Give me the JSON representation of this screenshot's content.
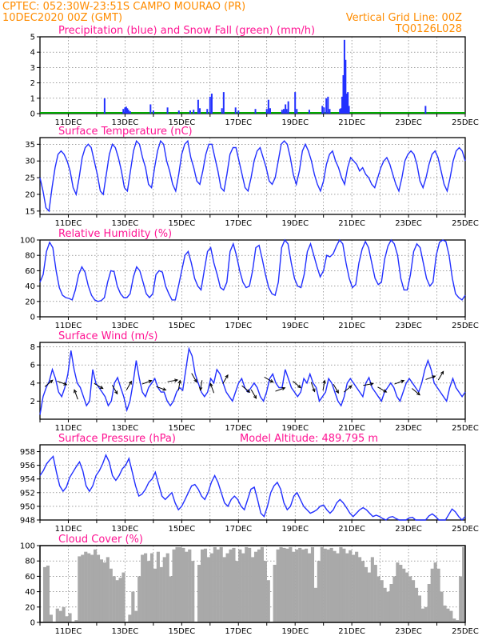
{
  "header": {
    "line1_left": "CPTEC:  052:30W-23:51S  CAMPO MOURAO (PR)",
    "line2_left": "10DEC2020 00Z (GMT)",
    "line2_right": "Vertical Grid Line: 00Z",
    "line3_right": "TQ0126L028"
  },
  "colors": {
    "header": "#ff8c00",
    "title": "#ff1493",
    "line": "#2230ff",
    "precip": "#2230ff",
    "snow": "#00aa00",
    "cloud": "#a9a9a9"
  },
  "x_tick_labels": [
    "11DEC",
    "13DEC",
    "15DEC",
    "17DEC",
    "19DEC",
    "21DEC",
    "23DEC",
    "25DEC"
  ],
  "chart_data": [
    {
      "id": "precip",
      "type": "bar",
      "title": "Precipitation (blue) and Snow Fall (green) (mm/h)",
      "ylim": [
        0,
        5
      ],
      "yticks": [
        "0",
        "1",
        "2",
        "3",
        "4",
        "5"
      ],
      "series": [
        {
          "name": "Precipitation",
          "points": [
            [
              2.28,
              1.0
            ],
            [
              2.94,
              0.3
            ],
            [
              3.0,
              0.4
            ],
            [
              3.04,
              0.45
            ],
            [
              3.08,
              0.35
            ],
            [
              3.12,
              0.25
            ],
            [
              3.18,
              0.15
            ],
            [
              3.9,
              0.6
            ],
            [
              4.0,
              0.2
            ],
            [
              4.5,
              0.4
            ],
            [
              4.9,
              0.2
            ],
            [
              5.3,
              0.2
            ],
            [
              5.42,
              0.25
            ],
            [
              5.58,
              0.9
            ],
            [
              5.64,
              0.35
            ],
            [
              5.9,
              0.3
            ],
            [
              6.0,
              1.1
            ],
            [
              6.06,
              1.3
            ],
            [
              6.42,
              0.35
            ],
            [
              6.48,
              1.4
            ],
            [
              6.9,
              0.4
            ],
            [
              7.0,
              0.2
            ],
            [
              7.6,
              0.3
            ],
            [
              8.0,
              0.3
            ],
            [
              8.06,
              0.9
            ],
            [
              8.12,
              0.35
            ],
            [
              8.54,
              0.25
            ],
            [
              8.6,
              0.3
            ],
            [
              8.66,
              0.6
            ],
            [
              8.7,
              0.3
            ],
            [
              8.76,
              0.8
            ],
            [
              9.0,
              1.4
            ],
            [
              9.06,
              0.3
            ],
            [
              9.5,
              0.25
            ],
            [
              9.96,
              0.5
            ],
            [
              10.02,
              0.4
            ],
            [
              10.1,
              1.0
            ],
            [
              10.16,
              1.1
            ],
            [
              10.22,
              0.3
            ],
            [
              10.58,
              0.3
            ],
            [
              10.62,
              0.35
            ],
            [
              10.66,
              1.1
            ],
            [
              10.7,
              2.5
            ],
            [
              10.74,
              4.8
            ],
            [
              10.78,
              3.5
            ],
            [
              10.82,
              1.3
            ],
            [
              10.86,
              1.4
            ],
            [
              10.9,
              0.5
            ],
            [
              13.6,
              0.5
            ]
          ]
        },
        {
          "name": "Snow Fall",
          "points": []
        }
      ]
    },
    {
      "id": "temp",
      "type": "line",
      "title": "Surface Temperature (nC)",
      "ylim": [
        14,
        37
      ],
      "yticks": [
        "15",
        "20",
        "25",
        "30",
        "35"
      ],
      "values": [
        25,
        21,
        16,
        15,
        22,
        28,
        32,
        33,
        32,
        30,
        27,
        22,
        20,
        25,
        31,
        34,
        35,
        34,
        30,
        26,
        21,
        20,
        26,
        32,
        35,
        34,
        31,
        27,
        22,
        21,
        27,
        33,
        36,
        35,
        31,
        28,
        23,
        22,
        28,
        33,
        36,
        35,
        30,
        27,
        23,
        21,
        26,
        32,
        35,
        36,
        31,
        28,
        24,
        23,
        27,
        32,
        35,
        35,
        31,
        27,
        22,
        21,
        26,
        32,
        34,
        34,
        30,
        26,
        22,
        21,
        25,
        30,
        33,
        34,
        31,
        28,
        24,
        23,
        25,
        30,
        35,
        36,
        35,
        31,
        26,
        23,
        27,
        33,
        35,
        33,
        30,
        26,
        23,
        21,
        24,
        29,
        32,
        33,
        30,
        28,
        25,
        23,
        28,
        31,
        30,
        29,
        27,
        28,
        26,
        25,
        23,
        22,
        25,
        28,
        30,
        31,
        29,
        26,
        23,
        21,
        25,
        30,
        32,
        33,
        32,
        29,
        24,
        22,
        25,
        29,
        32,
        33,
        31,
        27,
        23,
        21,
        25,
        30,
        33,
        34,
        33,
        30
      ],
      "xlim": [
        0,
        15
      ]
    },
    {
      "id": "rh",
      "type": "line",
      "title": "Relative Humidity (%)",
      "ylim": [
        0,
        100
      ],
      "yticks": [
        "0",
        "20",
        "40",
        "60",
        "80",
        "100"
      ],
      "values": [
        45,
        55,
        85,
        97,
        90,
        60,
        38,
        28,
        25,
        24,
        22,
        35,
        55,
        65,
        58,
        40,
        28,
        22,
        20,
        21,
        25,
        45,
        60,
        59,
        40,
        30,
        25,
        25,
        30,
        52,
        65,
        60,
        45,
        30,
        25,
        30,
        55,
        60,
        58,
        40,
        30,
        22,
        22,
        40,
        60,
        80,
        85,
        70,
        50,
        40,
        35,
        60,
        85,
        90,
        70,
        55,
        38,
        35,
        45,
        85,
        95,
        80,
        60,
        45,
        38,
        40,
        60,
        90,
        93,
        75,
        55,
        38,
        30,
        28,
        45,
        90,
        100,
        95,
        70,
        50,
        40,
        38,
        55,
        85,
        95,
        80,
        65,
        52,
        60,
        80,
        78,
        82,
        92,
        100,
        95,
        70,
        50,
        38,
        42,
        70,
        88,
        98,
        90,
        70,
        50,
        42,
        45,
        75,
        92,
        100,
        95,
        80,
        50,
        35,
        35,
        55,
        85,
        95,
        90,
        70,
        50,
        40,
        45,
        80,
        97,
        100,
        98,
        80,
        50,
        30,
        25,
        22,
        28
      ],
      "xlim": [
        0,
        15
      ]
    },
    {
      "id": "wind",
      "type": "line",
      "title": "Surface Wind (m/s)",
      "ylim": [
        0,
        8.5
      ],
      "yticks": [
        "2",
        "4",
        "6",
        "8"
      ],
      "values": [
        0.5,
        2.5,
        3.5,
        4.2,
        5.5,
        4.5,
        3.0,
        2.5,
        3.5,
        5.0,
        7.6,
        5.5,
        4.0,
        3.5,
        2.5,
        1.5,
        2.0,
        5.5,
        4.0,
        3.5,
        3.0,
        2.5,
        1.5,
        2.0,
        4.0,
        4.6,
        3.5,
        2.5,
        1.0,
        2.0,
        4.0,
        6.5,
        4.5,
        3.0,
        2.5,
        3.5,
        4.0,
        4.5,
        3.5,
        3.0,
        3.0,
        2.0,
        1.5,
        2.0,
        3.0,
        3.5,
        3.2,
        5.5,
        7.8,
        7.0,
        5.0,
        4.0,
        3.0,
        2.5,
        3.0,
        4.5,
        4.0,
        5.5,
        5.0,
        4.0,
        3.0,
        2.5,
        2.0,
        3.0,
        4.0,
        4.5,
        3.5,
        3.0,
        3.5,
        4.0,
        3.5,
        2.5,
        2.0,
        3.0,
        4.5,
        5.0,
        4.0,
        3.5,
        3.5,
        5.5,
        4.5,
        3.5,
        3.0,
        2.5,
        3.0,
        4.5,
        4.0,
        5.0,
        4.0,
        3.5,
        2.0,
        2.5,
        3.0,
        4.5,
        4.0,
        3.0,
        2.0,
        1.5,
        2.5,
        4.0,
        4.5,
        4.0,
        3.5,
        3.0,
        2.5,
        4.0,
        4.6,
        3.5,
        3.0,
        2.5,
        2.0,
        3.0,
        3.5,
        4.0,
        3.5,
        2.5,
        2.0,
        3.0,
        4.0,
        4.5,
        4.0,
        3.5,
        3.0,
        4.0,
        5.5,
        6.5,
        5.5,
        4.0,
        3.5,
        3.0,
        2.5,
        2.0,
        3.5,
        4.5,
        3.5,
        3.0,
        2.5,
        3.0
      ],
      "xlim": [
        0,
        15
      ]
    },
    {
      "id": "pressure",
      "type": "line",
      "title": "Surface Pressure (hPa)",
      "annotation": "Model Altitude: 489.795 m",
      "ylim": [
        948,
        959
      ],
      "yticks": [
        "948",
        "950",
        "952",
        "954",
        "956",
        "958"
      ],
      "values": [
        954.5,
        955.2,
        956.2,
        956.8,
        957.3,
        955.0,
        953.0,
        952.2,
        952.8,
        954.2,
        955.0,
        955.8,
        956.5,
        955.2,
        953.0,
        952.2,
        953.0,
        954.5,
        955.2,
        956.2,
        957.5,
        956.5,
        954.5,
        953.8,
        954.5,
        955.5,
        956.0,
        957.0,
        955.0,
        953.0,
        951.5,
        951.8,
        952.5,
        953.5,
        954.0,
        955.0,
        953.2,
        951.5,
        951.0,
        951.5,
        952.0,
        950.5,
        949.5,
        950.0,
        951.0,
        952.0,
        953.0,
        953.2,
        952.5,
        951.5,
        951.0,
        952.0,
        953.5,
        954.5,
        953.5,
        952.0,
        950.5,
        950.0,
        951.0,
        951.5,
        951.0,
        950.0,
        949.5,
        951.0,
        952.5,
        952.8,
        951.0,
        949.0,
        948.5,
        950.0,
        952.0,
        953.0,
        953.5,
        952.5,
        950.5,
        949.5,
        950.0,
        951.5,
        952.0,
        951.0,
        950.0,
        949.5,
        949.0,
        949.2,
        949.5,
        950.0,
        950.2,
        949.5,
        949.0,
        949.5,
        950.5,
        951.0,
        950.5,
        949.8,
        949.0,
        948.5,
        949.0,
        949.5,
        949.8,
        949.5,
        949.0,
        948.5,
        948.7,
        948.5,
        948.2,
        948.0,
        948.4,
        948.5,
        948.2,
        948.0,
        947.8,
        948.0,
        948.3,
        948.4,
        948.0,
        947.5,
        947.8,
        948.0,
        948.6,
        948.9,
        948.5,
        948.0,
        947.8,
        948.0,
        948.8,
        949.6,
        949.2,
        948.5,
        948.0,
        948.5
      ],
      "xlim": [
        0,
        15
      ]
    },
    {
      "id": "cloud",
      "type": "bar",
      "title": "Cloud Cover (%)",
      "ylim": [
        0,
        100
      ],
      "yticks": [
        "0",
        "20",
        "40",
        "60",
        "80",
        "100"
      ],
      "values": [
        0,
        72,
        74,
        10,
        0,
        18,
        15,
        20,
        8,
        12,
        0,
        3,
        86,
        88,
        92,
        90,
        88,
        95,
        88,
        82,
        78,
        85,
        70,
        60,
        55,
        58,
        65,
        0,
        10,
        40,
        15,
        60,
        88,
        90,
        80,
        90,
        70,
        92,
        72,
        85,
        90,
        60,
        95,
        98,
        98,
        97,
        92,
        95,
        80,
        0,
        75,
        95,
        96,
        85,
        90,
        98,
        95,
        98,
        85,
        90,
        95,
        97,
        80,
        95,
        90,
        98,
        97,
        85,
        92,
        95,
        98,
        80,
        55,
        0,
        75,
        95,
        98,
        97,
        96,
        98,
        92,
        95,
        97,
        95,
        96,
        90,
        98,
        45,
        80,
        98,
        96,
        95,
        97,
        93,
        90,
        98,
        96,
        90,
        94,
        88,
        92,
        85,
        80,
        72,
        65,
        85,
        75,
        60,
        55,
        45,
        40,
        50,
        60,
        78,
        75,
        70,
        65,
        60,
        55,
        45,
        35,
        18,
        20,
        50,
        70,
        78,
        70,
        40,
        22,
        18,
        15,
        5,
        3,
        60,
        98
      ],
      "xlim": [
        0,
        15
      ]
    }
  ]
}
